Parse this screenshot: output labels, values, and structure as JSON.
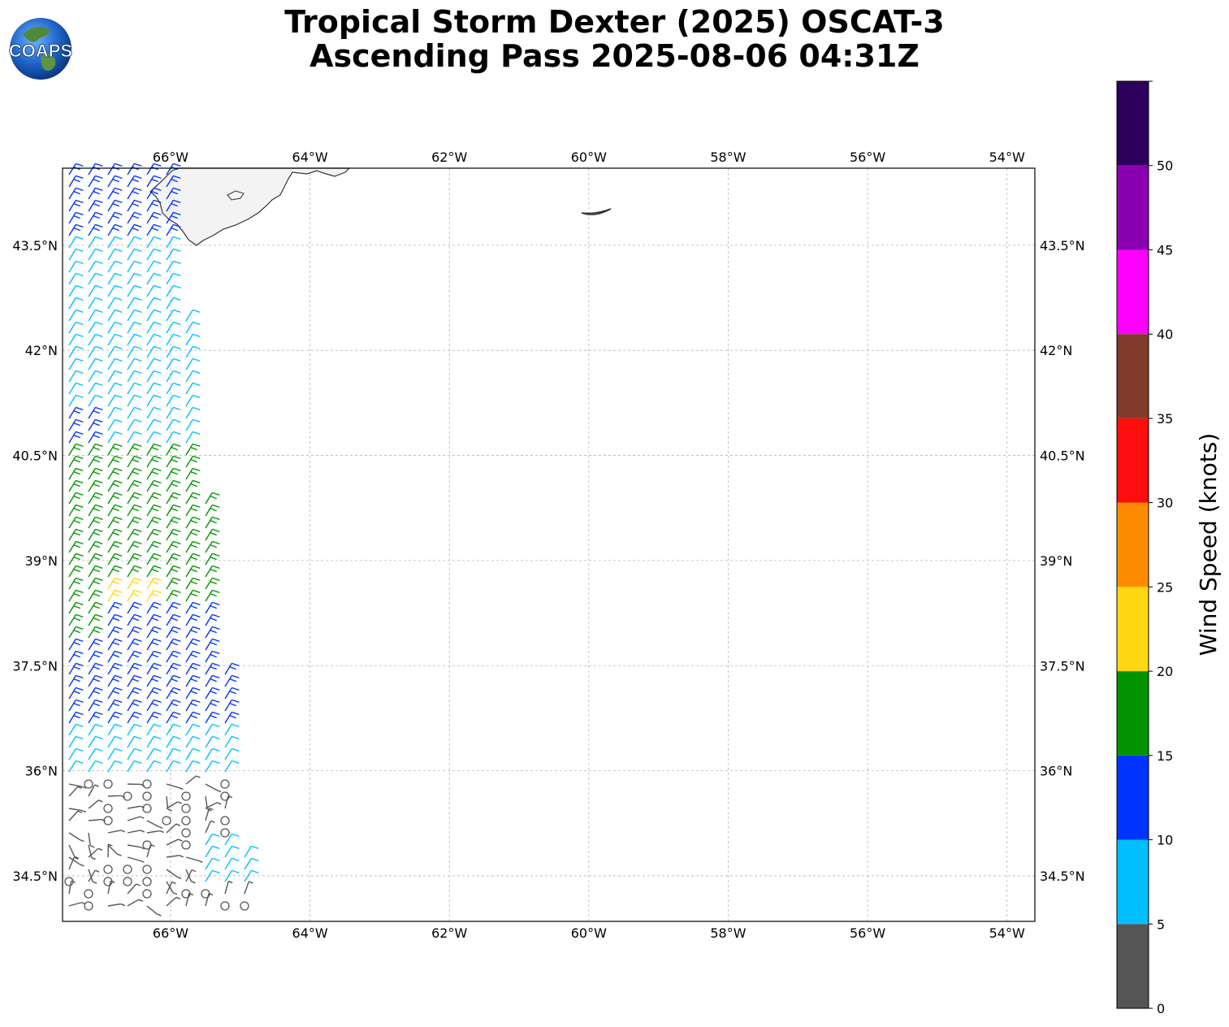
{
  "title": {
    "line1": "Tropical Storm Dexter (2025) OSCAT-3",
    "line2": "Ascending Pass 2025-08-06 04:31Z"
  },
  "logo": {
    "text": "COAPS"
  },
  "map": {
    "lon_range": [
      -67.55,
      -53.6
    ],
    "lat_range": [
      33.85,
      44.6
    ],
    "lon_ticks": [
      {
        "value": -66,
        "label": "66°W"
      },
      {
        "value": -64,
        "label": "64°W"
      },
      {
        "value": -62,
        "label": "62°W"
      },
      {
        "value": -60,
        "label": "60°W"
      },
      {
        "value": -58,
        "label": "58°W"
      },
      {
        "value": -56,
        "label": "56°W"
      },
      {
        "value": -54,
        "label": "54°W"
      }
    ],
    "lat_ticks": [
      {
        "value": 43.5,
        "label": "43.5°N"
      },
      {
        "value": 42,
        "label": "42°N"
      },
      {
        "value": 40.5,
        "label": "40.5°N"
      },
      {
        "value": 39,
        "label": "39°N"
      },
      {
        "value": 37.5,
        "label": "37.5°N"
      },
      {
        "value": 36,
        "label": "36°N"
      },
      {
        "value": 34.5,
        "label": "34.5°N"
      }
    ],
    "gridlines": true
  },
  "colorbar": {
    "label": "Wind Speed (knots)",
    "bins": [
      {
        "min": 0,
        "max": 5,
        "color": "#555555"
      },
      {
        "min": 5,
        "max": 10,
        "color": "#00bfff"
      },
      {
        "min": 10,
        "max": 15,
        "color": "#0033ff"
      },
      {
        "min": 15,
        "max": 20,
        "color": "#009400"
      },
      {
        "min": 20,
        "max": 25,
        "color": "#ffd713"
      },
      {
        "min": 25,
        "max": 30,
        "color": "#ff8c00"
      },
      {
        "min": 30,
        "max": 35,
        "color": "#ff0d0d"
      },
      {
        "min": 35,
        "max": 40,
        "color": "#7f3a2a"
      },
      {
        "min": 40,
        "max": 45,
        "color": "#ff00ff"
      },
      {
        "min": 45,
        "max": 50,
        "color": "#8b00b0"
      },
      {
        "min": 50,
        "max": 55,
        "color": "#2d005d"
      }
    ],
    "ticks": [
      0,
      5,
      10,
      15,
      20,
      25,
      30,
      35,
      40,
      45,
      50
    ]
  }
}
